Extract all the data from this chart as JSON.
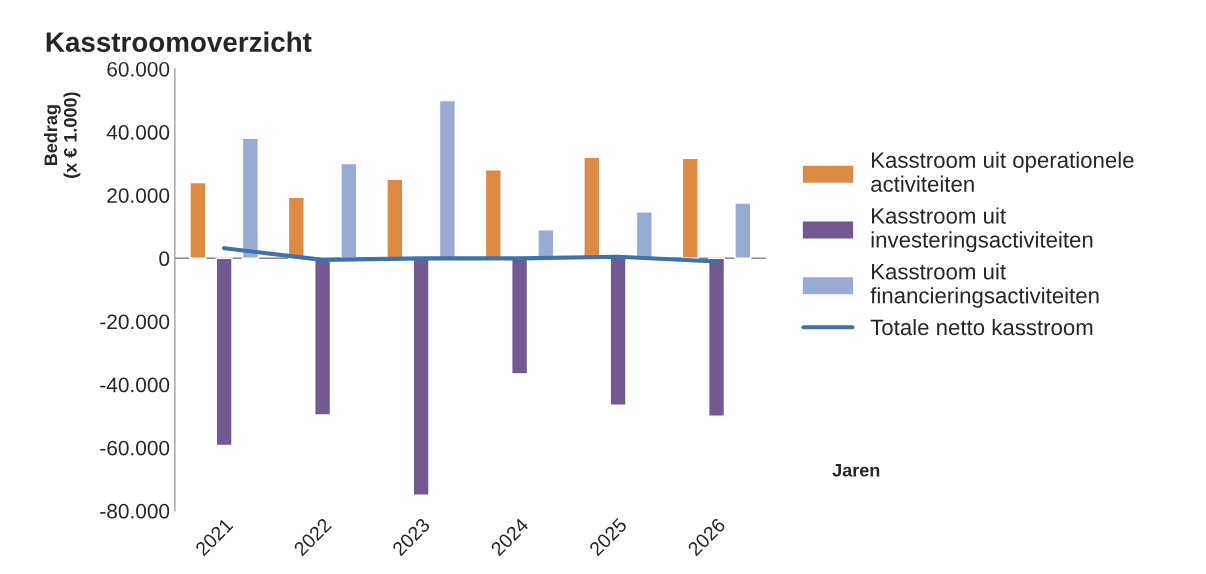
{
  "chart_data": {
    "type": "bar",
    "title": "Kasstroomoverzicht",
    "xlabel": "Jaren",
    "ylabel": "Bedrag\n(x € 1.000)",
    "categories": [
      "2021",
      "2022",
      "2023",
      "2024",
      "2025",
      "2026"
    ],
    "series": [
      {
        "name": "Kasstroom uit operationele activiteiten",
        "color": "#dd8a44",
        "values": [
          24000,
          19300,
          25000,
          28000,
          32000,
          31700
        ]
      },
      {
        "name": "Kasstroom uit investeringsactiviteiten",
        "color": "#735992",
        "values": [
          -59300,
          -49600,
          -75000,
          -36600,
          -46500,
          -50000
        ]
      },
      {
        "name": "Kasstroom uit financieringsactiviteiten",
        "color": "#98abd4",
        "values": [
          38000,
          30000,
          50000,
          9000,
          14700,
          17500
        ]
      },
      {
        "name": "Totale netto kasstroom",
        "type": "line",
        "color": "#3f72ab",
        "values": [
          3200,
          -500,
          0,
          0,
          500,
          -1000
        ]
      }
    ],
    "ylim": [
      -80000,
      60000
    ],
    "yticks": [
      {
        "value": -80000,
        "label": "-80.000"
      },
      {
        "value": -60000,
        "label": "-60.000"
      },
      {
        "value": -40000,
        "label": "-40.000"
      },
      {
        "value": -20000,
        "label": "-20.000"
      },
      0,
      {
        "value": 20000,
        "label": "20.000"
      },
      {
        "value": 40000,
        "label": "40.000"
      },
      {
        "value": 60000,
        "label": "60.000"
      }
    ],
    "ref_lines": [
      {
        "axis": "y",
        "value": 0,
        "color": "#888888"
      }
    ],
    "legend": "right",
    "grid": false,
    "marker": "none",
    "line_style": "solid"
  }
}
